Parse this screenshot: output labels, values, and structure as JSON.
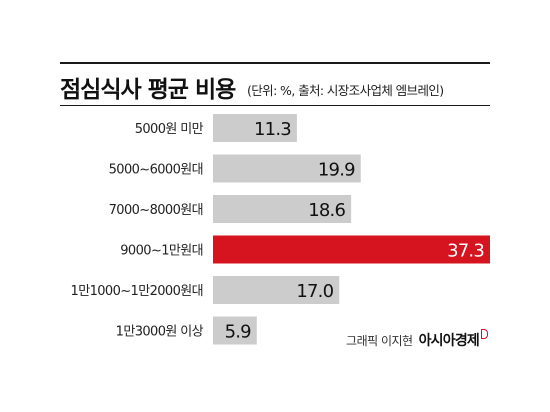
{
  "header": {
    "title": "점심식사 평균 비용",
    "subtitle": "(단위: %, 출처: 시장조사업체 엠브레인)"
  },
  "footer": {
    "credit": "그래픽 이지현",
    "brand": "아시아경제"
  },
  "colors": {
    "bar_default": "#cccccc",
    "bar_highlight": "#d6141f",
    "value_text": "#111111",
    "value_text_highlight": "#ffffff"
  },
  "chart_data": {
    "type": "bar",
    "orientation": "horizontal",
    "categories": [
      "5000원 미만",
      "5000~6000원대",
      "7000~8000원대",
      "9000~1만원대",
      "1만1000~1만2000원대",
      "1만3000원 이상"
    ],
    "values": [
      11.3,
      19.9,
      18.6,
      37.3,
      17.0,
      5.9
    ],
    "value_labels": [
      "11.3",
      "19.9",
      "18.6",
      "37.3",
      "17.0",
      "5.9"
    ],
    "highlight_index": 3,
    "xlim": [
      0,
      37.3
    ],
    "grid": false,
    "legend": "none"
  }
}
